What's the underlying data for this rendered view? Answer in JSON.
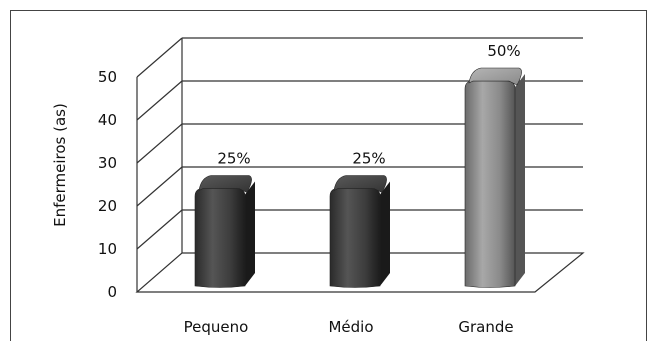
{
  "chart_data": {
    "type": "bar",
    "categories": [
      "Pequeno",
      "Médio",
      "Grande"
    ],
    "values": [
      25,
      25,
      50
    ],
    "data_labels": [
      "25%",
      "25%",
      "50%"
    ],
    "title": "",
    "xlabel": "",
    "ylabel": "Enfermeiros (as)",
    "ylim": [
      0,
      50
    ],
    "yticks": [
      "0",
      "10",
      "20",
      "30",
      "40",
      "50"
    ],
    "grid": true,
    "three_d": true,
    "legend": "none",
    "colors": {
      "bar_light": "#8f8f8f",
      "bar_dark": "#3a3a3a",
      "grid": "#333333"
    }
  }
}
